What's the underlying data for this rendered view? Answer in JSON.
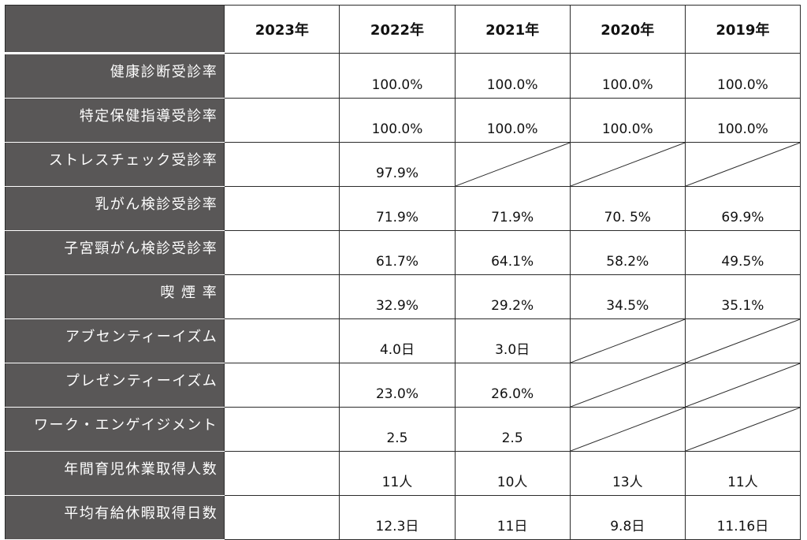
{
  "table": {
    "years": [
      "2023年",
      "2022年",
      "2021年",
      "2020年",
      "2019年"
    ],
    "rows": [
      {
        "label": "健康診断受診率",
        "values": [
          "",
          "100.0%",
          "100.0%",
          "100.0%",
          "100.0%"
        ]
      },
      {
        "label": "特定保健指導受診率",
        "values": [
          "",
          "100.0%",
          "100.0%",
          "100.0%",
          "100.0%"
        ]
      },
      {
        "label": "ストレスチェック受診率",
        "values": [
          "",
          "97.9%",
          null,
          null,
          null
        ]
      },
      {
        "label": "乳がん検診受診率",
        "values": [
          "",
          "71.9%",
          "71.9%",
          "70. 5%",
          "69.9%"
        ]
      },
      {
        "label": "子宮頸がん検診受診率",
        "values": [
          "",
          "61.7%",
          "64.1%",
          "58.2%",
          "49.5%"
        ]
      },
      {
        "label": "喫 煙 率",
        "values": [
          "",
          "32.9%",
          "29.2%",
          "34.5%",
          "35.1%"
        ]
      },
      {
        "label": "アブセンティーイズム",
        "values": [
          "",
          "4.0日",
          "3.0日",
          null,
          null
        ]
      },
      {
        "label": "プレゼンティーイズム",
        "values": [
          "",
          "23.0%",
          "26.0%",
          null,
          null
        ]
      },
      {
        "label": "ワーク・エンゲイジメント",
        "values": [
          "",
          "2.5",
          "2.5",
          null,
          null
        ]
      },
      {
        "label": "年間育児休業取得人数",
        "values": [
          "",
          "11人",
          "10人",
          "13人",
          "11人"
        ]
      },
      {
        "label": "平均有給休暇取得日数",
        "values": [
          "",
          "12.3日",
          "11日",
          "9.8日",
          "11.16日"
        ]
      }
    ]
  },
  "colors": {
    "label_bg": "#595757",
    "label_text": "#ffffff",
    "grid_line": "#2b2b2b"
  }
}
